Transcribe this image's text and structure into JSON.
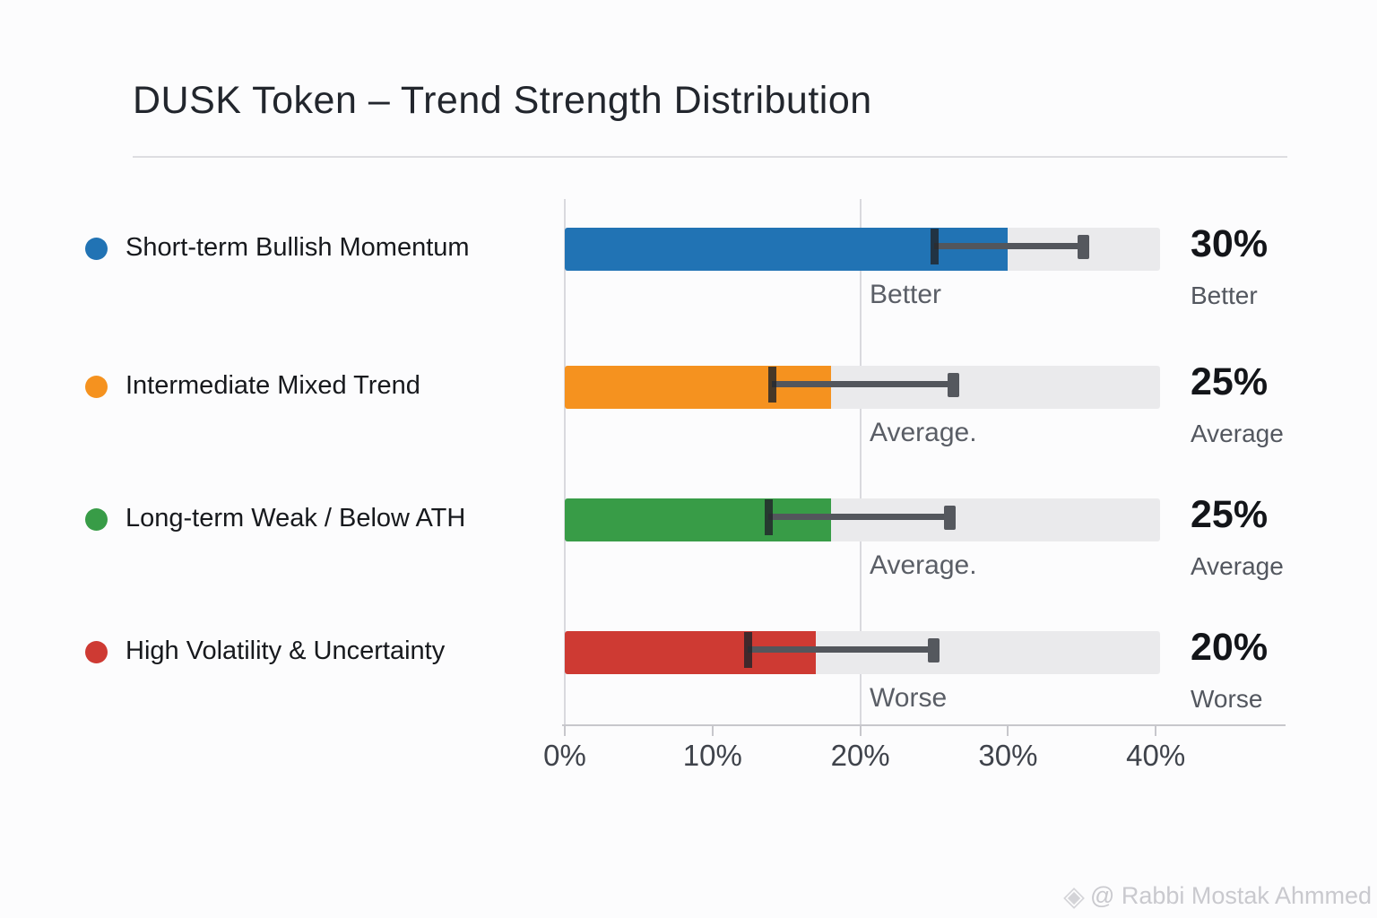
{
  "title": "DUSK Token – Trend Strength Distribution",
  "watermark": {
    "icon": "diamond-logo",
    "icon_glyph": "◈",
    "text": "@ Rabbi Mostak Ahmmed"
  },
  "chart_data": {
    "type": "bar",
    "orientation": "horizontal",
    "title": "DUSK Token – Trend Strength Distribution",
    "categories": [
      "Short-term Bullish Momentum",
      "Intermediate Mixed Trend",
      "Long-term Weak / Below ATH",
      "High Volatility & Uncertainty"
    ],
    "values": [
      30,
      25,
      25,
      20
    ],
    "value_labels": [
      "30%",
      "25%",
      "25%",
      "20%"
    ],
    "value_captions": [
      "Better",
      "Average",
      "Average",
      "Worse"
    ],
    "annotations": [
      "Better",
      "Average.",
      "Average.",
      "Worse"
    ],
    "bar_fill_pct": [
      30,
      18,
      18,
      17
    ],
    "error_low": [
      25,
      14,
      13.8,
      12.4
    ],
    "error_high": [
      35,
      26.2,
      26,
      24.9
    ],
    "bar_colors": [
      "#2173b4",
      "#f5921f",
      "#389c47",
      "#ce3a33"
    ],
    "track_max_pct": 40.3,
    "xlabel": "",
    "ylabel": "",
    "xlim": [
      0,
      40
    ],
    "x_ticks": [
      "0%",
      "10%",
      "20%",
      "30%",
      "40%"
    ],
    "x_tick_values": [
      0,
      10,
      20,
      30,
      40
    ],
    "gridlines_at": [
      0,
      20
    ],
    "grid": "vertical-partial",
    "legend_position": "left-of-bars"
  }
}
